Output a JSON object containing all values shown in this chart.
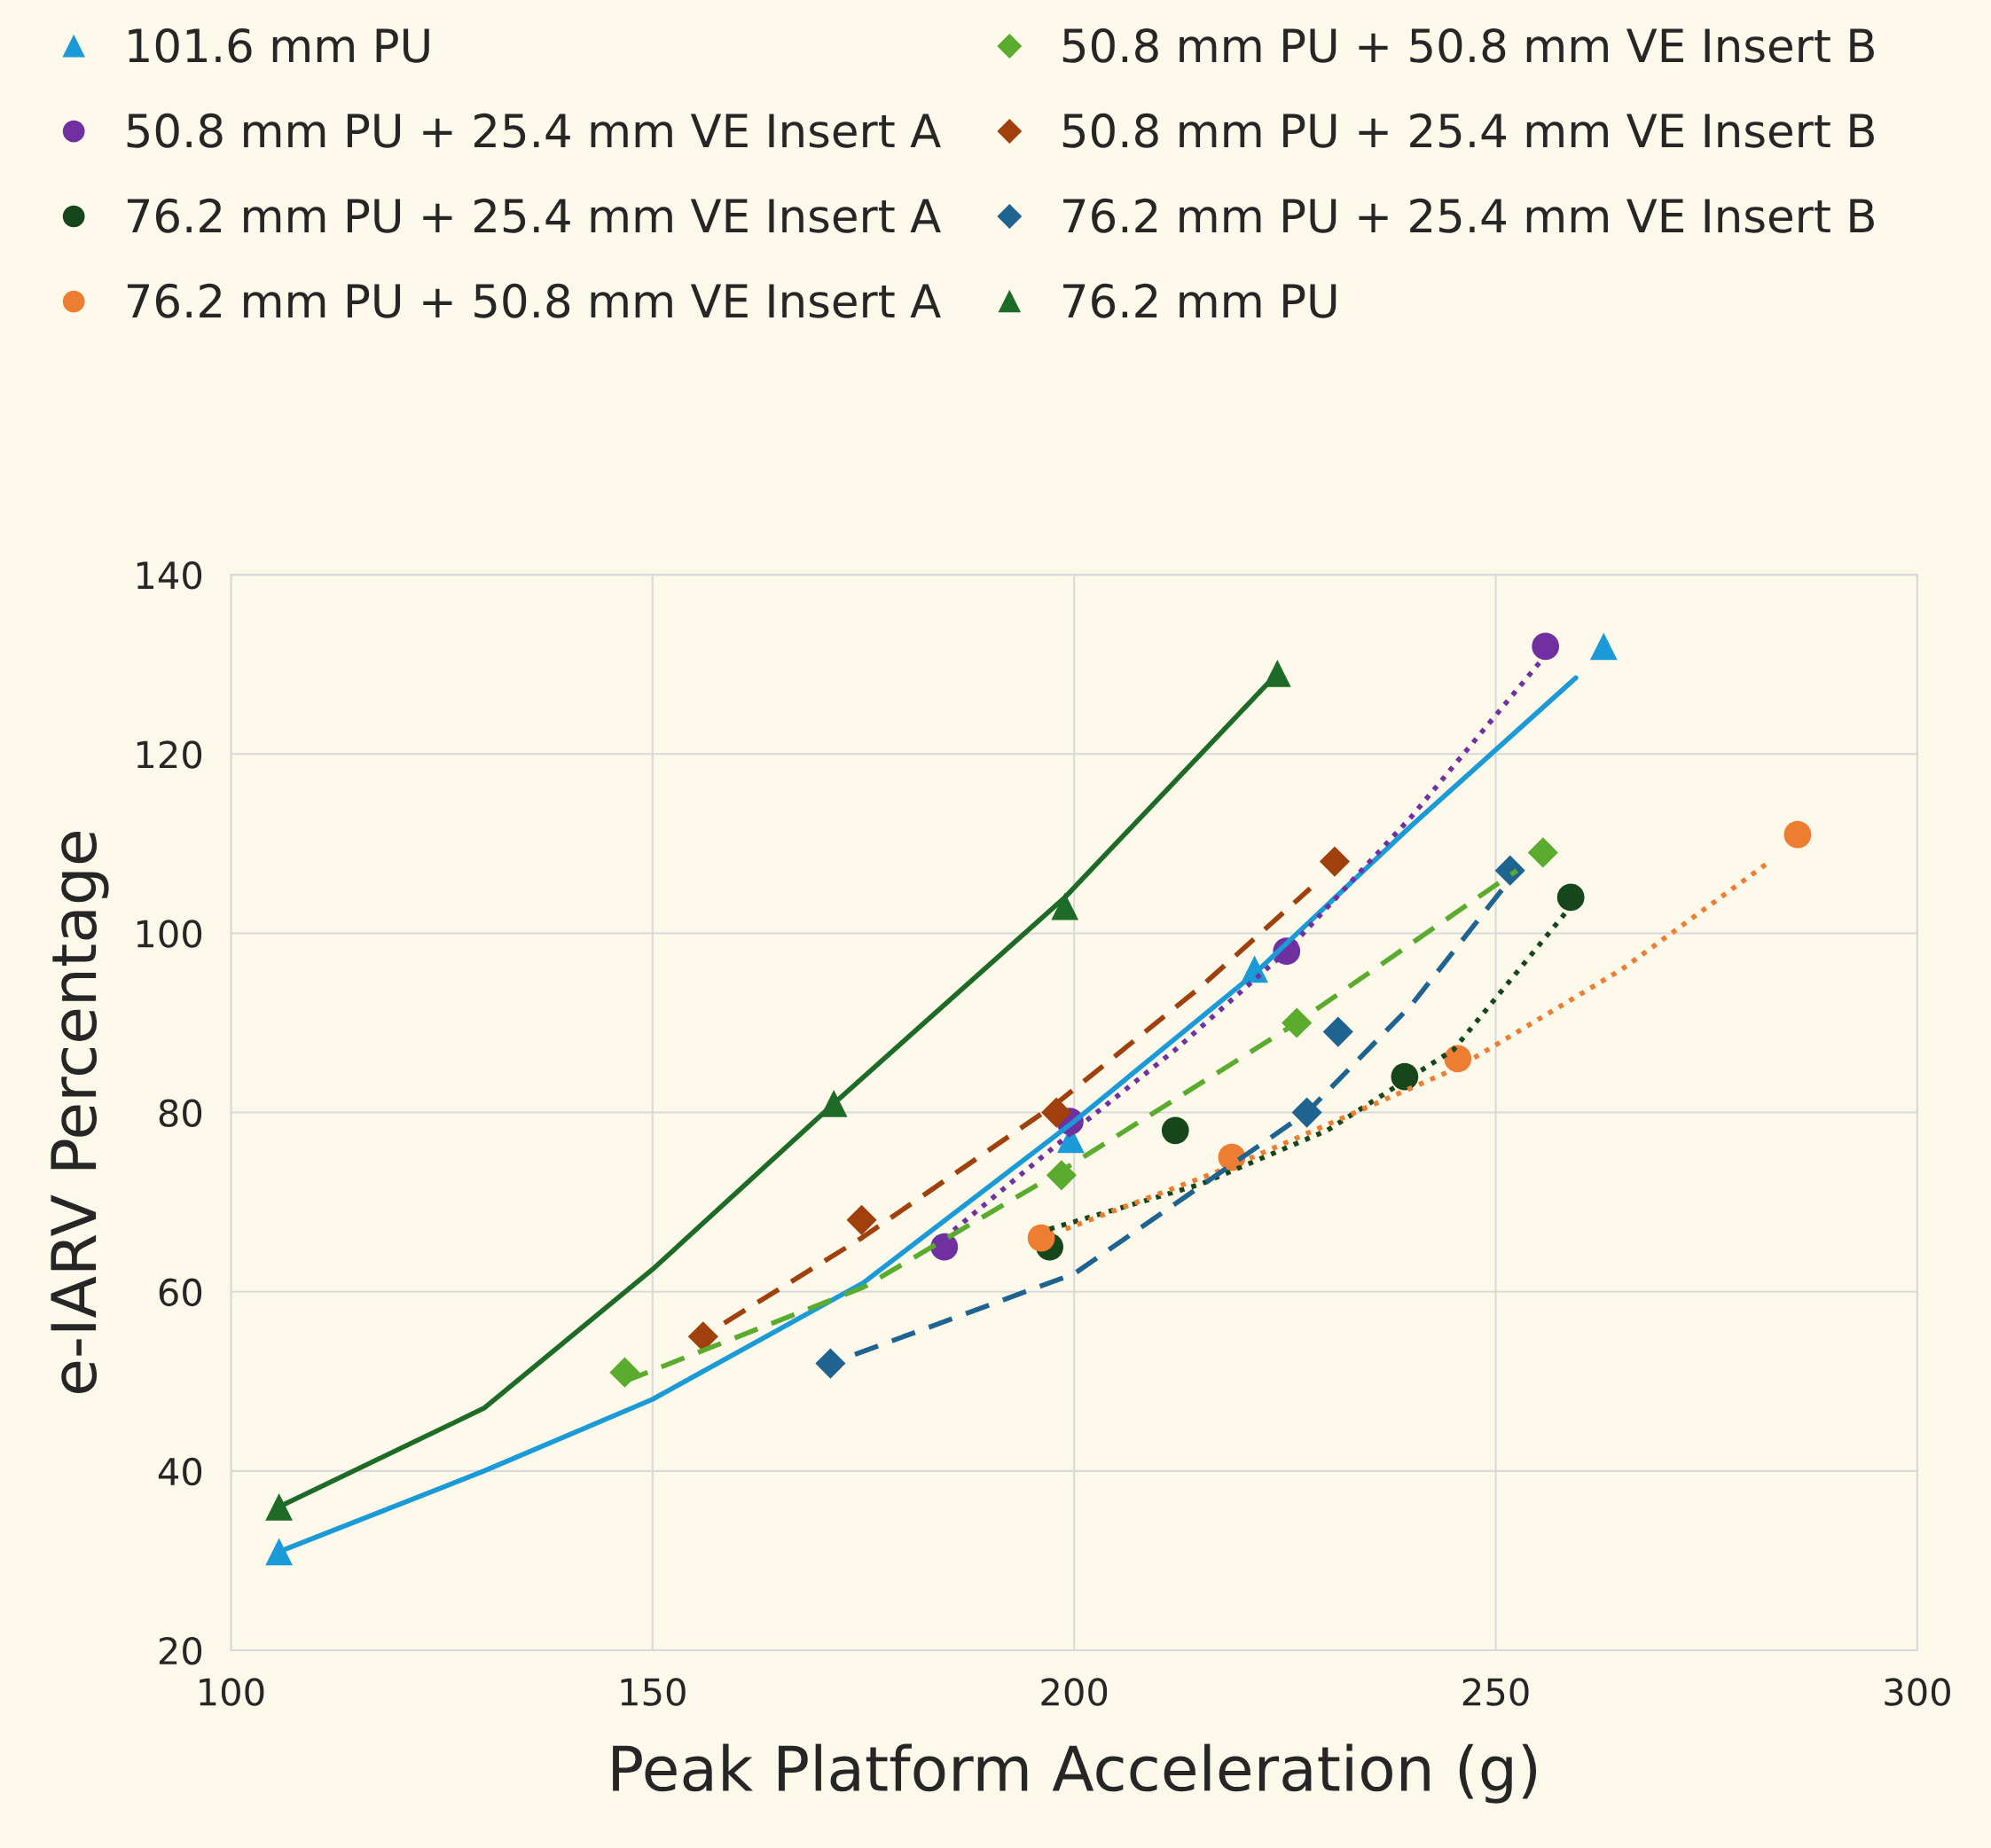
{
  "chart_data": {
    "type": "scatter",
    "xlabel": "Peak Platform Acceleration (g)",
    "ylabel": "e-IARV Percentage",
    "xlim": [
      100,
      300
    ],
    "xticks": [
      100,
      150,
      200,
      250,
      300
    ],
    "ylim": [
      20,
      140
    ],
    "yticks": [
      20,
      40,
      60,
      80,
      100,
      120,
      140
    ],
    "grid": true,
    "legend": "top",
    "series": [
      {
        "name": "101.6 mm PU",
        "color": "#1a9bd7",
        "marker": "triangle",
        "x": [
          105.7,
          199.6,
          221.4,
          262.8
        ],
        "values": [
          31,
          77,
          96,
          132
        ]
      },
      {
        "name": "50.8 mm PU + 25.4 mm VE Insert A",
        "color": "#7030a0",
        "marker": "circle",
        "x": [
          184.6,
          199.5,
          225.2,
          255.9
        ],
        "values": [
          65,
          79,
          98,
          132
        ]
      },
      {
        "name": "76.2 mm PU + 25.4 mm VE Insert A",
        "color": "#17461b",
        "marker": "circle",
        "x": [
          197.1,
          212,
          239.2,
          258.9
        ],
        "values": [
          65,
          78,
          84,
          104
        ]
      },
      {
        "name": "76.2 mm PU + 50.8 mm VE Insert A",
        "color": "#ed7d31",
        "marker": "circle",
        "x": [
          196.1,
          218.7,
          245.5,
          285.8
        ],
        "values": [
          66,
          75,
          86,
          111
        ]
      },
      {
        "name": "50.8 mm PU + 50.8 mm VE Insert B",
        "color": "#5aab2e",
        "marker": "diamond",
        "x": [
          146.7,
          198.5,
          226.4,
          255.6
        ],
        "values": [
          51,
          73,
          90,
          109
        ]
      },
      {
        "name": "50.8 mm PU + 25.4 mm VE Insert B",
        "color": "#a0400c",
        "marker": "diamond",
        "x": [
          156,
          174.8,
          197.9,
          230.9
        ],
        "values": [
          55,
          68,
          80,
          108
        ]
      },
      {
        "name": "76.2 mm PU + 25.4 mm VE Insert B",
        "color": "#1f6391",
        "marker": "diamond",
        "x": [
          171.1,
          227.6,
          231.3,
          251.7
        ],
        "values": [
          52,
          80,
          89,
          107
        ]
      },
      {
        "name": "76.2 mm PU",
        "color": "#1e6b28",
        "marker": "triangle",
        "x": [
          105.7,
          171.5,
          198.9,
          224.1
        ],
        "values": [
          36,
          81,
          103,
          129
        ]
      },
      {
        "type": "line",
        "color": "#1a9bd7",
        "line_style": "solid",
        "x": [
          105.7,
          130,
          150,
          175,
          200,
          221.4,
          240,
          259.5
        ],
        "values": [
          31,
          40,
          48,
          61,
          79,
          95.5,
          112,
          128.5
        ]
      },
      {
        "type": "line",
        "color": "#7030a0",
        "line_style": "dotted",
        "x": [
          184.6,
          200,
          212,
          225.2,
          240,
          255.9
        ],
        "values": [
          66,
          78,
          87,
          98,
          113,
          131
        ]
      },
      {
        "type": "line",
        "color": "#17461b",
        "line_style": "dotted",
        "x": [
          197.1,
          215,
          230,
          245,
          258.9
        ],
        "values": [
          67,
          72,
          78,
          87,
          103
        ]
      },
      {
        "type": "line",
        "color": "#ed7d31",
        "line_style": "dotted",
        "x": [
          199,
          218.7,
          245.5,
          265,
          282.5
        ],
        "values": [
          67,
          74,
          85,
          96,
          108
        ]
      },
      {
        "type": "line",
        "color": "#5aab2e",
        "line_style": "dashed",
        "x": [
          146.7,
          175,
          198.5,
          226.4,
          252.5
        ],
        "values": [
          50,
          60.5,
          73.5,
          90,
          107
        ]
      },
      {
        "type": "line",
        "color": "#a0400c",
        "line_style": "dashed",
        "x": [
          158.5,
          174.8,
          197.9,
          215,
          228
        ],
        "values": [
          56.5,
          66,
          81,
          94,
          105
        ]
      },
      {
        "type": "line",
        "color": "#1f6391",
        "line_style": "dashed",
        "x": [
          174,
          200,
          227.6,
          240,
          251.7
        ],
        "values": [
          53,
          62,
          80,
          92,
          106
        ]
      },
      {
        "type": "line",
        "color": "#1e6b28",
        "line_style": "solid",
        "x": [
          105.7,
          130,
          150,
          171.5,
          198.9,
          224.1
        ],
        "values": [
          36,
          47,
          62.5,
          81,
          104,
          129
        ]
      }
    ]
  }
}
